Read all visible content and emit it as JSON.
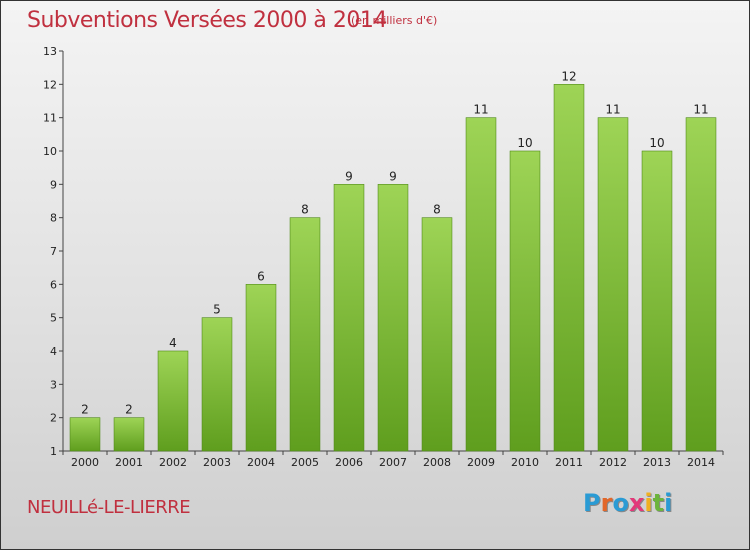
{
  "header": {
    "title": "Subventions Versées 2000 à 2014",
    "subtitle": "(en milliers d'€)"
  },
  "footer": {
    "town": "NEUILLé-LE-LIERRE",
    "logo_letters": [
      "P",
      "r",
      "o",
      "x",
      "i",
      "t",
      "i"
    ],
    "logo_colors": [
      "#2a9bd4",
      "#e2672a",
      "#2a9bd4",
      "#e23a7a",
      "#f0b020",
      "#6cb43c",
      "#2a9bd4"
    ]
  },
  "chart_data": {
    "type": "bar",
    "title": "Subventions Versées 2000 à 2014",
    "subtitle": "(en milliers d'€)",
    "categories": [
      "2000",
      "2001",
      "2002",
      "2003",
      "2004",
      "2005",
      "2006",
      "2007",
      "2008",
      "2009",
      "2010",
      "2011",
      "2012",
      "2013",
      "2014"
    ],
    "values": [
      2,
      2,
      4,
      5,
      6,
      8,
      9,
      9,
      8,
      11,
      10,
      12,
      11,
      10,
      11
    ],
    "ylim": [
      1,
      13
    ],
    "yticks": [
      1,
      2,
      3,
      4,
      5,
      6,
      7,
      8,
      9,
      10,
      11,
      12,
      13
    ],
    "grid": false,
    "legend": "none",
    "bar_color": "#7cc43a"
  }
}
